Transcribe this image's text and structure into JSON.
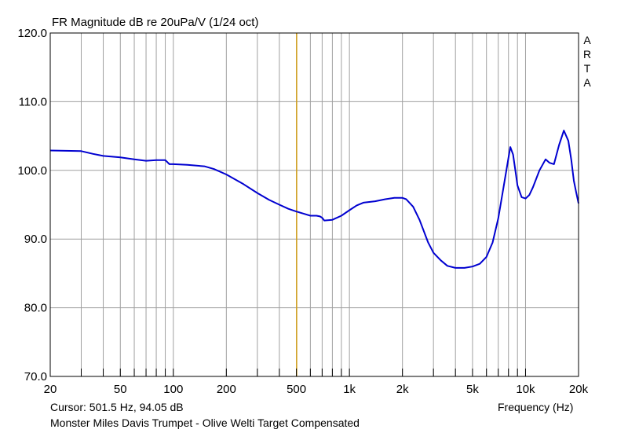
{
  "chart_data": {
    "type": "line",
    "title": "FR Magnitude dB re 20uPa/V (1/24 oct)",
    "brand": [
      "A",
      "R",
      "T",
      "A"
    ],
    "xlabel": "Frequency (Hz)",
    "ylabel": "",
    "x_scale": "log",
    "xlim": [
      20,
      20000
    ],
    "ylim": [
      70,
      120
    ],
    "grid": true,
    "x_ticks": [
      {
        "value": 20,
        "label": "20"
      },
      {
        "value": 50,
        "label": "50"
      },
      {
        "value": 100,
        "label": "100"
      },
      {
        "value": 200,
        "label": "200"
      },
      {
        "value": 500,
        "label": "500"
      },
      {
        "value": 1000,
        "label": "1k"
      },
      {
        "value": 2000,
        "label": "2k"
      },
      {
        "value": 5000,
        "label": "5k"
      },
      {
        "value": 10000,
        "label": "10k"
      },
      {
        "value": 20000,
        "label": "20k"
      }
    ],
    "y_ticks": [
      {
        "value": 70,
        "label": "70.0"
      },
      {
        "value": 80,
        "label": "80.0"
      },
      {
        "value": 90,
        "label": "90.0"
      },
      {
        "value": 100,
        "label": "100.0"
      },
      {
        "value": 110,
        "label": "110.0"
      },
      {
        "value": 120,
        "label": "120.0"
      }
    ],
    "series_color": "#0000d0",
    "cursor_color": "#d4a017",
    "grid_color": "#a0a0a0",
    "cursor": {
      "x": 501.5,
      "y": 94.05,
      "text": "Cursor: 501.5 Hz, 94.05 dB"
    },
    "caption": "Monster Miles Davis Trumpet - Olive Welti Target Compensated",
    "series": [
      {
        "x": [
          20,
          30,
          35,
          40,
          50,
          60,
          70,
          80,
          90,
          95,
          100,
          120,
          150,
          170,
          200,
          250,
          300,
          350,
          400,
          450,
          500,
          550,
          600,
          650,
          680,
          700,
          720,
          800,
          900,
          1000,
          1100,
          1200,
          1400,
          1600,
          1800,
          2000,
          2100,
          2300,
          2500,
          2800,
          3000,
          3300,
          3600,
          4000,
          4500,
          5000,
          5500,
          6000,
          6500,
          7000,
          7500,
          8000,
          8200,
          8500,
          8800,
          9000,
          9500,
          10000,
          10500,
          11000,
          12000,
          13000,
          13700,
          14500,
          15500,
          16500,
          17500,
          18200,
          18800,
          19400,
          20000
        ],
        "y": [
          102.9,
          102.8,
          102.4,
          102.1,
          101.9,
          101.6,
          101.4,
          101.5,
          101.5,
          100.9,
          100.9,
          100.8,
          100.6,
          100.2,
          99.4,
          98.0,
          96.7,
          95.7,
          95.0,
          94.4,
          94.0,
          93.7,
          93.4,
          93.4,
          93.3,
          93.1,
          92.7,
          92.8,
          93.4,
          94.2,
          94.9,
          95.3,
          95.5,
          95.8,
          96.0,
          96.0,
          95.8,
          94.7,
          92.8,
          89.5,
          88.0,
          86.9,
          86.1,
          85.8,
          85.8,
          86.0,
          86.4,
          87.4,
          89.5,
          93.0,
          97.5,
          101.8,
          103.4,
          102.3,
          99.6,
          97.8,
          96.1,
          95.9,
          96.4,
          97.5,
          100.0,
          101.6,
          101.1,
          100.9,
          103.7,
          105.8,
          104.3,
          101.5,
          98.5,
          96.8,
          95.2
        ]
      }
    ]
  }
}
